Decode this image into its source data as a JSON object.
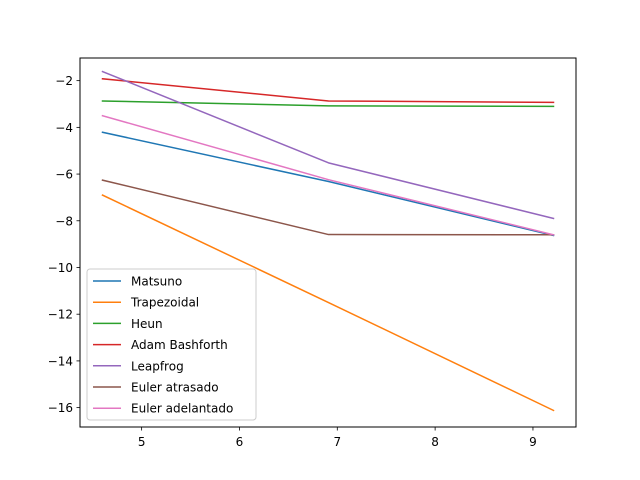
{
  "chart_data": {
    "type": "line",
    "title": "",
    "xlabel": "",
    "ylabel": "",
    "xlim": [
      4.37,
      9.44
    ],
    "ylim": [
      -16.83,
      -1.03
    ],
    "x_ticks": [
      5,
      6,
      7,
      8,
      9
    ],
    "x_tick_labels": [
      "5",
      "6",
      "7",
      "8",
      "9"
    ],
    "y_ticks": [
      -16,
      -14,
      -12,
      -10,
      -8,
      -6,
      -4,
      -2
    ],
    "y_tick_labels": [
      "−16",
      "−14",
      "−12",
      "−10",
      "−8",
      "−6",
      "−4",
      "−2"
    ],
    "grid": false,
    "legend_position": "lower-left",
    "x": [
      4.6,
      6.91,
      9.21
    ],
    "series": [
      {
        "name": "Matsuno",
        "color": "#1f77b4",
        "values": [
          -4.21,
          -6.32,
          -8.63
        ]
      },
      {
        "name": "Trapezoidal",
        "color": "#ff7f0e",
        "values": [
          -6.9,
          -11.5,
          -16.12
        ]
      },
      {
        "name": "Heun",
        "color": "#2ca02c",
        "values": [
          -2.87,
          -3.08,
          -3.1
        ]
      },
      {
        "name": "Adam Bashforth",
        "color": "#d62728",
        "values": [
          -1.92,
          -2.87,
          -2.93
        ]
      },
      {
        "name": "Leapfrog",
        "color": "#9467bd",
        "values": [
          -1.61,
          -5.52,
          -7.9
        ]
      },
      {
        "name": "Euler atrasado",
        "color": "#8c564b",
        "values": [
          -6.26,
          -8.59,
          -8.6
        ]
      },
      {
        "name": "Euler adelantado",
        "color": "#e377c2",
        "values": [
          -3.5,
          -6.24,
          -8.6
        ]
      }
    ]
  }
}
